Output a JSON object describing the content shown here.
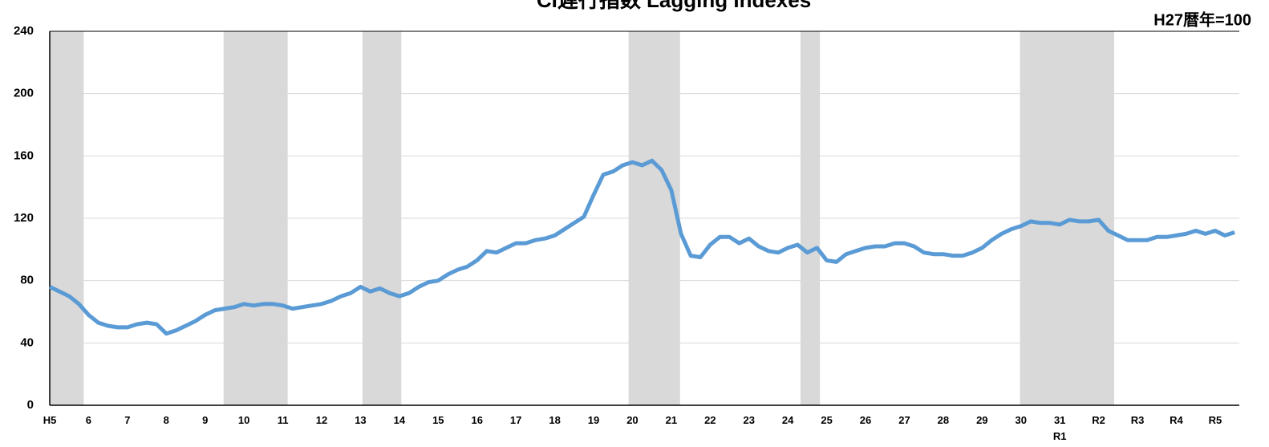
{
  "chart_data": {
    "type": "line",
    "title": "CI遅行指数 Lagging Indexes",
    "note": "H27暦年=100",
    "categories": [
      "H5",
      null,
      null,
      null,
      "6",
      null,
      null,
      null,
      "7",
      null,
      null,
      null,
      "8",
      null,
      null,
      null,
      "9",
      null,
      null,
      null,
      "10",
      null,
      null,
      null,
      "11",
      null,
      null,
      null,
      "12",
      null,
      null,
      null,
      "13",
      null,
      null,
      null,
      "14",
      null,
      null,
      null,
      "15",
      null,
      null,
      null,
      "16",
      null,
      null,
      null,
      "17",
      null,
      null,
      null,
      "18",
      null,
      null,
      null,
      "19",
      null,
      null,
      null,
      "20",
      null,
      null,
      null,
      "21",
      null,
      null,
      null,
      "22",
      null,
      null,
      null,
      "23",
      null,
      null,
      null,
      "24",
      null,
      null,
      null,
      "25",
      null,
      null,
      null,
      "26",
      null,
      null,
      null,
      "27",
      null,
      null,
      null,
      "28",
      null,
      null,
      null,
      "29",
      null,
      null,
      null,
      "30",
      null,
      null,
      null,
      "31\nR1",
      null,
      null,
      null,
      "R2",
      null,
      null,
      null,
      "R3",
      null,
      null,
      null,
      "R4",
      null,
      null,
      null,
      "R5",
      null,
      null
    ],
    "series": [
      {
        "color": "#5b9bd5",
        "values": [
          76,
          73,
          70,
          65,
          58,
          53,
          51,
          50,
          50,
          52,
          53,
          52,
          46,
          48,
          51,
          54,
          58,
          61,
          62,
          63,
          65,
          64,
          65,
          65,
          64,
          62,
          63,
          64,
          65,
          67,
          70,
          72,
          76,
          73,
          75,
          72,
          70,
          72,
          76,
          79,
          80,
          84,
          87,
          89,
          93,
          99,
          98,
          101,
          104,
          104,
          106,
          107,
          109,
          113,
          117,
          121,
          135,
          148,
          150,
          154,
          156,
          154,
          157,
          151,
          138,
          110,
          96,
          95,
          103,
          108,
          108,
          104,
          107,
          102,
          99,
          98,
          101,
          103,
          98,
          101,
          93,
          92,
          97,
          99,
          101,
          102,
          102,
          104,
          104,
          102,
          98,
          97,
          97,
          96,
          96,
          98,
          101,
          106,
          110,
          113,
          115,
          118,
          117,
          117,
          116,
          119,
          118,
          118,
          119,
          112,
          109,
          106,
          106,
          106,
          108,
          108,
          109,
          110,
          112,
          110,
          112,
          109,
          111
        ]
      }
    ],
    "shaded": [
      [
        0,
        3.5
      ],
      [
        17.9,
        24.5
      ],
      [
        32.2,
        36.2
      ],
      [
        59.6,
        64.9
      ],
      [
        77.3,
        79.3
      ],
      [
        99.9,
        109.6
      ]
    ],
    "shade_color": "#d9d9d9",
    "ylim": [
      0,
      240
    ],
    "yticks": [
      0,
      40,
      80,
      120,
      160,
      200,
      240
    ],
    "grid": true
  }
}
